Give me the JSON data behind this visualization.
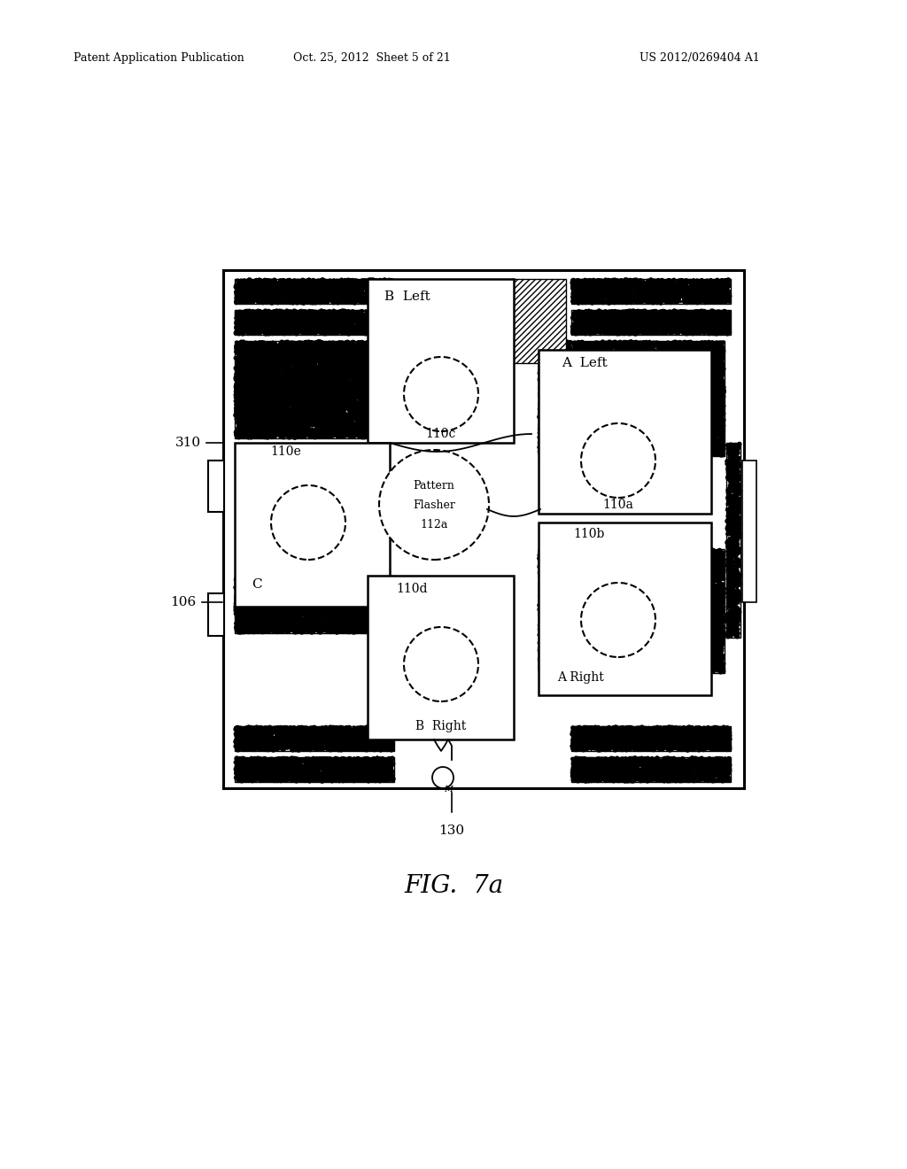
{
  "background_color": "#ffffff",
  "header_left": "Patent Application Publication",
  "header_center": "Oct. 25, 2012  Sheet 5 of 21",
  "header_right": "US 2012/0269404 A1",
  "fig_label": "FIG.  7a"
}
